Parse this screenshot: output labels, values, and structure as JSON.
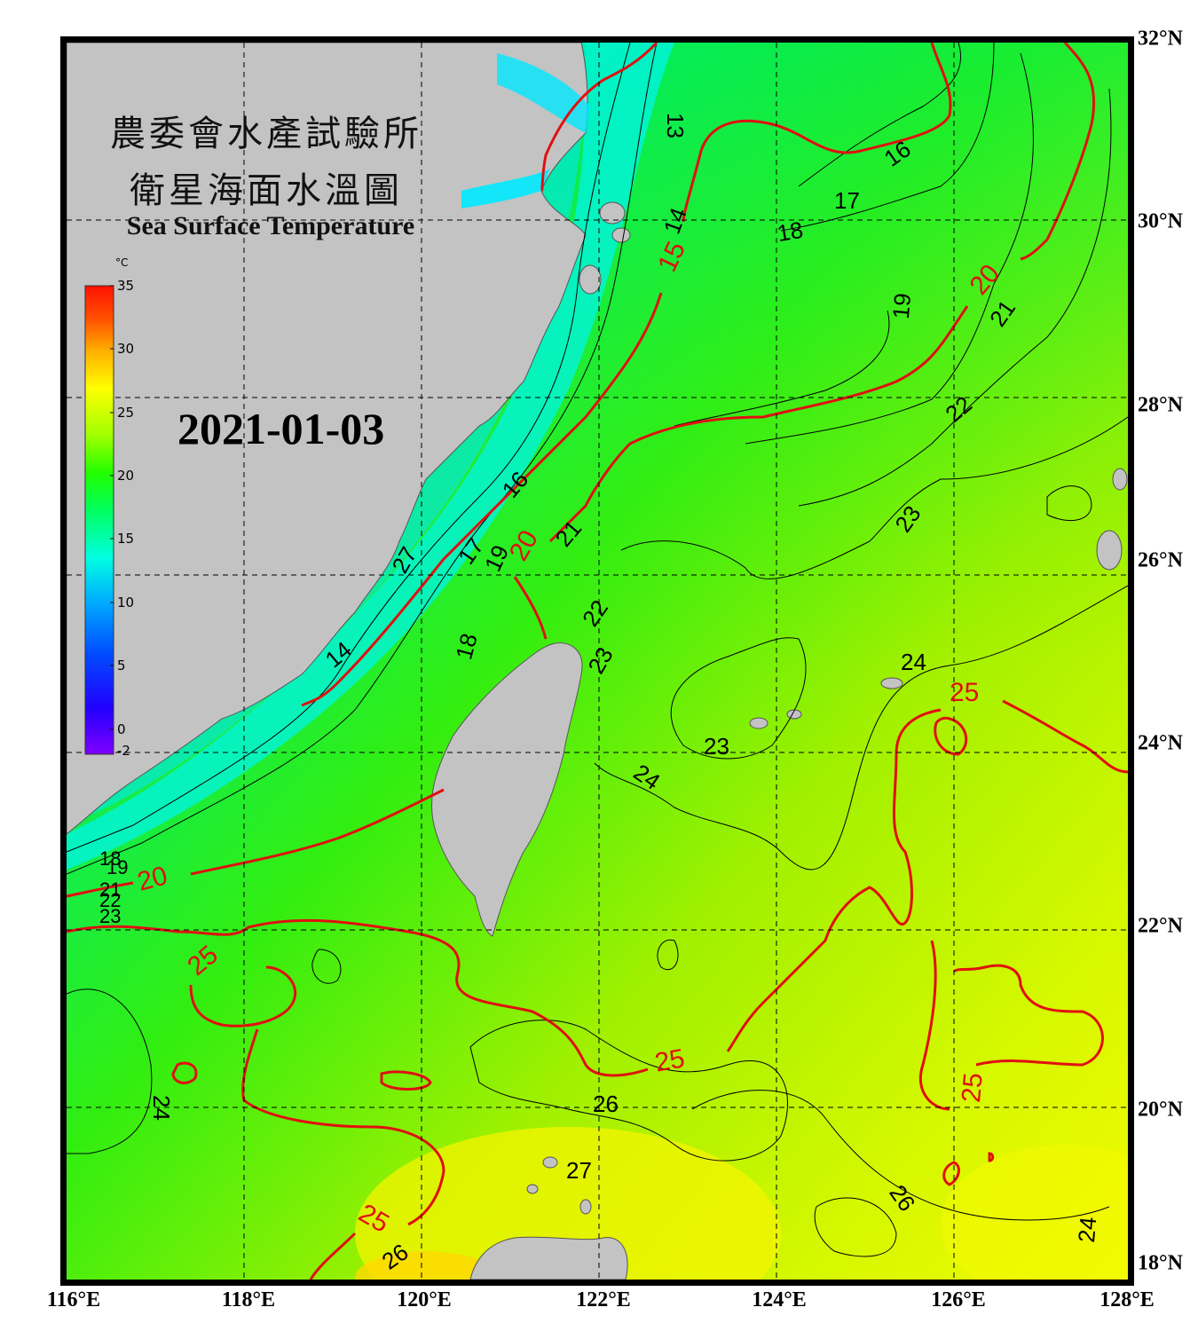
{
  "title_zh_line1": "農委會水產試驗所",
  "title_zh_line2": "衛星海面水溫圖",
  "title_en": "Sea Surface Temperature",
  "date": "2021-01-03",
  "colorbar": {
    "unit": "°C",
    "min": -2,
    "max": 35,
    "ticks": [
      "35",
      "30",
      "25",
      "20",
      "15",
      "10",
      "5",
      "0",
      "-2"
    ],
    "colors": [
      "#7f00ff",
      "#2000ff",
      "#0050ff",
      "#00b0ff",
      "#00ffe0",
      "#00ff60",
      "#20ff00",
      "#a0ff00",
      "#ffff00",
      "#ffb000",
      "#ff5000",
      "#ff1000"
    ]
  },
  "axes": {
    "lon_labels": [
      "116°E",
      "118°E",
      "120°E",
      "122°E",
      "124°E",
      "126°E",
      "128°E"
    ],
    "lat_labels": [
      "32°N",
      "30°N",
      "28°N",
      "26°N",
      "24°N",
      "22°N",
      "20°N",
      "18°N"
    ]
  },
  "contour_labels": {
    "black": [
      "13",
      "16",
      "17",
      "18",
      "14",
      "19",
      "21",
      "22",
      "23",
      "24",
      "13",
      "16",
      "17",
      "19",
      "21",
      "22",
      "23",
      "18",
      "24",
      "23",
      "24",
      "26",
      "27",
      "26",
      "24",
      "26",
      "27",
      "19",
      "18",
      "21",
      "22",
      "23",
      "14",
      "16",
      "13"
    ],
    "red": [
      "15",
      "20",
      "20",
      "20",
      "25",
      "25",
      "25",
      "25",
      "25"
    ]
  },
  "colors": {
    "land": "#c3c3c3",
    "frame": "#000000",
    "contour_major": "#e01010",
    "contour_minor": "#000000"
  }
}
